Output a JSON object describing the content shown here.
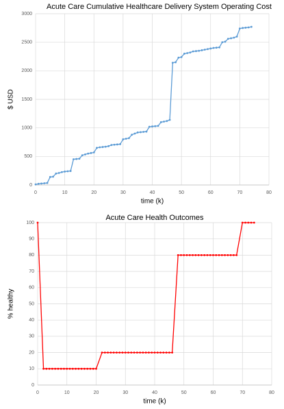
{
  "chart_data": [
    {
      "type": "line",
      "title": "Acute Care Cumulative Healthcare Delivery System Operating Cost",
      "x_label": "time (k)",
      "y_label": "$ USD",
      "color": "#5b9bd5",
      "x": [
        0,
        1,
        2,
        3,
        4,
        5,
        6,
        7,
        8,
        9,
        10,
        11,
        12,
        13,
        14,
        15,
        16,
        17,
        18,
        19,
        20,
        21,
        22,
        23,
        24,
        25,
        26,
        27,
        28,
        29,
        30,
        31,
        32,
        33,
        34,
        35,
        36,
        37,
        38,
        39,
        40,
        41,
        42,
        43,
        44,
        45,
        46,
        47,
        48,
        49,
        50,
        51,
        52,
        53,
        54,
        55,
        56,
        57,
        58,
        59,
        60,
        61,
        62,
        63,
        64,
        65,
        66,
        67,
        68,
        69,
        70,
        71,
        72,
        73,
        74
      ],
      "values": [
        10,
        20,
        25,
        30,
        35,
        140,
        145,
        200,
        210,
        225,
        235,
        240,
        245,
        450,
        455,
        460,
        520,
        535,
        550,
        560,
        570,
        650,
        660,
        665,
        670,
        680,
        700,
        705,
        710,
        715,
        800,
        810,
        820,
        880,
        900,
        920,
        925,
        930,
        935,
        1020,
        1025,
        1030,
        1035,
        1100,
        1110,
        1120,
        1140,
        2140,
        2150,
        2230,
        2240,
        2300,
        2310,
        2320,
        2340,
        2345,
        2350,
        2360,
        2370,
        2380,
        2390,
        2400,
        2405,
        2410,
        2500,
        2510,
        2560,
        2570,
        2580,
        2600,
        2740,
        2750,
        2755,
        2760,
        2770
      ],
      "xlim": [
        0,
        80
      ],
      "xticks": [
        0,
        10,
        20,
        30,
        40,
        50,
        60,
        70,
        80
      ],
      "ylim": [
        0,
        3000
      ],
      "yticks": [
        0,
        500,
        1000,
        1500,
        2000,
        2500,
        3000
      ],
      "grid": true
    },
    {
      "type": "line",
      "title": "Acute Care Health Outcomes",
      "x_label": "time (k)",
      "y_label": "% healthy",
      "color": "#ff0000",
      "x": [
        0,
        2,
        3,
        4,
        5,
        6,
        7,
        8,
        9,
        10,
        11,
        12,
        13,
        14,
        15,
        16,
        17,
        18,
        19,
        20,
        22,
        23,
        24,
        25,
        26,
        27,
        28,
        29,
        30,
        31,
        32,
        33,
        34,
        35,
        36,
        37,
        38,
        39,
        40,
        41,
        42,
        43,
        44,
        45,
        46,
        48,
        49,
        50,
        51,
        52,
        53,
        54,
        55,
        56,
        57,
        58,
        59,
        60,
        61,
        62,
        63,
        64,
        65,
        66,
        67,
        68,
        70,
        71,
        72,
        73,
        74
      ],
      "values": [
        100,
        10,
        10,
        10,
        10,
        10,
        10,
        10,
        10,
        10,
        10,
        10,
        10,
        10,
        10,
        10,
        10,
        10,
        10,
        10,
        20,
        20,
        20,
        20,
        20,
        20,
        20,
        20,
        20,
        20,
        20,
        20,
        20,
        20,
        20,
        20,
        20,
        20,
        20,
        20,
        20,
        20,
        20,
        20,
        20,
        80,
        80,
        80,
        80,
        80,
        80,
        80,
        80,
        80,
        80,
        80,
        80,
        80,
        80,
        80,
        80,
        80,
        80,
        80,
        80,
        80,
        100,
        100,
        100,
        100,
        100
      ],
      "xlim": [
        0,
        80
      ],
      "xticks": [
        0,
        10,
        20,
        30,
        40,
        50,
        60,
        70,
        80
      ],
      "ylim": [
        0,
        100
      ],
      "yticks": [
        0,
        10,
        20,
        30,
        40,
        50,
        60,
        70,
        80,
        90,
        100
      ],
      "grid": true
    }
  ]
}
